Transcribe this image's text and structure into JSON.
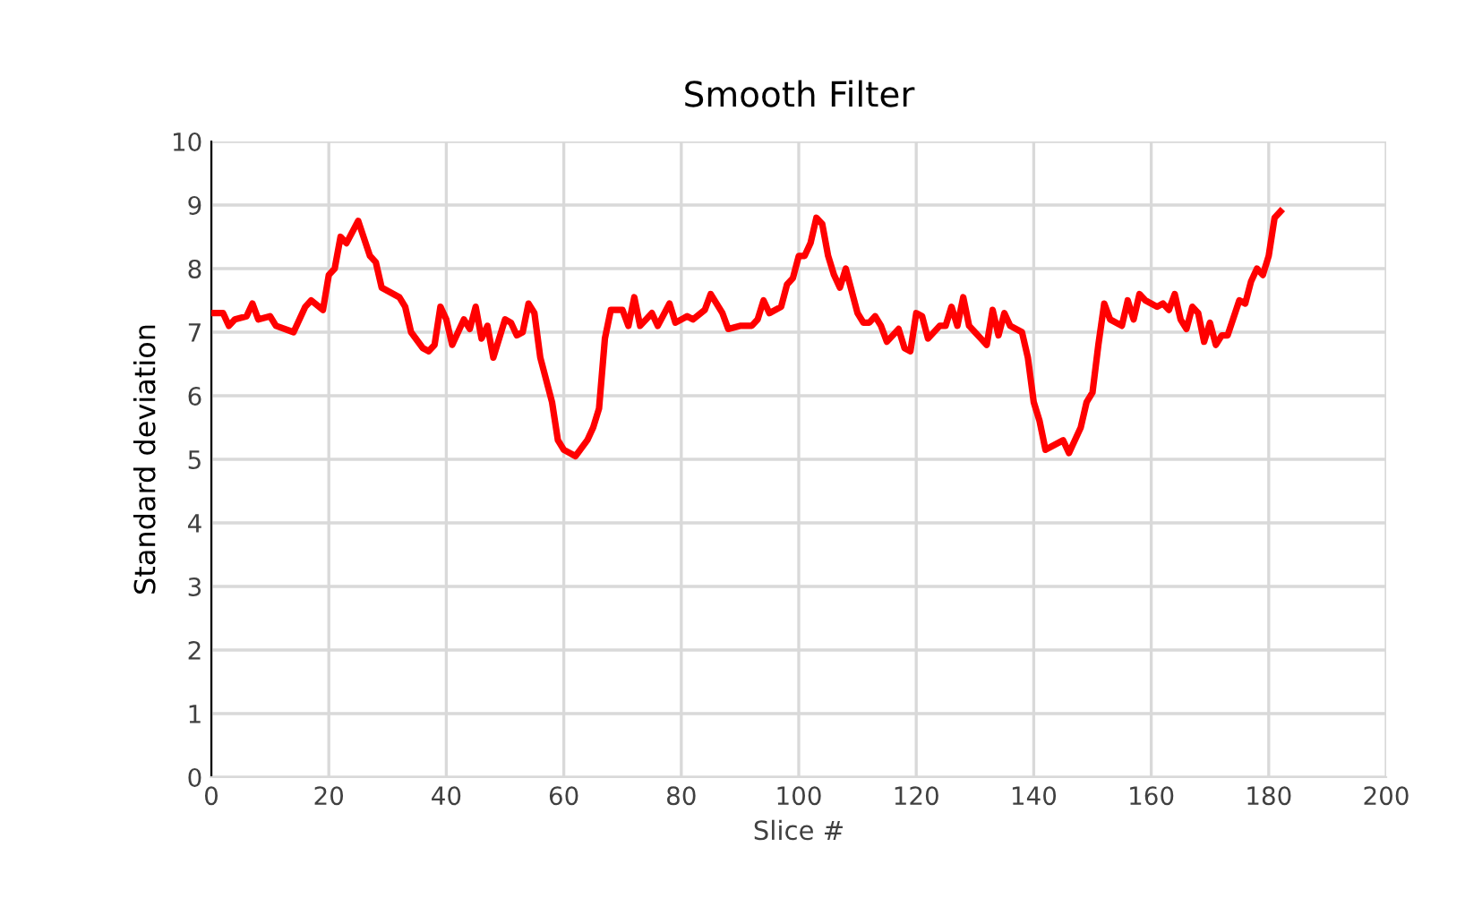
{
  "chart_data": {
    "type": "line",
    "title": "Smooth Filter",
    "xlabel": "Slice #",
    "ylabel": "Standard deviation",
    "xlim": [
      0,
      200
    ],
    "xticks": [
      0,
      20,
      40,
      60,
      80,
      100,
      120,
      140,
      160,
      180,
      200
    ],
    "ylim": [
      0,
      10
    ],
    "yticks": [
      0,
      1,
      2,
      3,
      4,
      5,
      6,
      7,
      8,
      9,
      10
    ],
    "grid": true,
    "marker": "none",
    "line_style": "solid",
    "series": [
      {
        "color": "#ff0000",
        "x": [
          0,
          2,
          3,
          4,
          6,
          7,
          8,
          10,
          11,
          14,
          16,
          17,
          19,
          20,
          21,
          22,
          23,
          25,
          27,
          28,
          29,
          32,
          33,
          34,
          36,
          37,
          38,
          39,
          40,
          41,
          43,
          44,
          45,
          46,
          47,
          48,
          50,
          51,
          52,
          53,
          54,
          55,
          56,
          58,
          59,
          60,
          62,
          64,
          65,
          66,
          67,
          68,
          70,
          71,
          72,
          73,
          75,
          76,
          78,
          79,
          81,
          82,
          84,
          85,
          87,
          88,
          90,
          92,
          93,
          94,
          95,
          97,
          98,
          99,
          100,
          101,
          102,
          103,
          104,
          105,
          106,
          107,
          108,
          110,
          111,
          112,
          113,
          114,
          115,
          117,
          118,
          119,
          120,
          121,
          122,
          124,
          125,
          126,
          127,
          128,
          129,
          130,
          131,
          132,
          133,
          134,
          135,
          136,
          138,
          139,
          140,
          141,
          142,
          143,
          145,
          146,
          148,
          149,
          150,
          151,
          152,
          153,
          155,
          156,
          157,
          158,
          159,
          161,
          162,
          163,
          164,
          165,
          166,
          167,
          168,
          169,
          170,
          171,
          172,
          173,
          175,
          176,
          177,
          178,
          179,
          180,
          181,
          182
        ],
        "values": [
          7.3,
          7.3,
          7.1,
          7.2,
          7.25,
          7.45,
          7.2,
          7.25,
          7.1,
          7.0,
          7.4,
          7.5,
          7.35,
          7.9,
          8.0,
          8.5,
          8.4,
          8.75,
          8.2,
          8.1,
          7.7,
          7.55,
          7.4,
          7.0,
          6.75,
          6.7,
          6.8,
          7.4,
          7.2,
          6.8,
          7.2,
          7.05,
          7.4,
          6.9,
          7.1,
          6.6,
          7.2,
          7.15,
          6.95,
          7.0,
          7.45,
          7.3,
          6.6,
          5.9,
          5.3,
          5.15,
          5.05,
          5.3,
          5.5,
          5.8,
          6.9,
          7.35,
          7.35,
          7.1,
          7.55,
          7.1,
          7.3,
          7.1,
          7.45,
          7.15,
          7.25,
          7.2,
          7.35,
          7.6,
          7.3,
          7.05,
          7.1,
          7.1,
          7.2,
          7.5,
          7.3,
          7.4,
          7.75,
          7.85,
          8.2,
          8.2,
          8.4,
          8.8,
          8.7,
          8.2,
          7.9,
          7.7,
          8.0,
          7.3,
          7.15,
          7.15,
          7.25,
          7.1,
          6.85,
          7.05,
          6.75,
          6.7,
          7.3,
          7.25,
          6.9,
          7.1,
          7.1,
          7.4,
          7.1,
          7.55,
          7.1,
          7.0,
          6.9,
          6.8,
          7.35,
          6.95,
          7.3,
          7.1,
          7.0,
          6.6,
          5.9,
          5.6,
          5.15,
          5.2,
          5.3,
          5.1,
          5.5,
          5.9,
          6.05,
          6.8,
          7.45,
          7.2,
          7.1,
          7.5,
          7.2,
          7.6,
          7.5,
          7.4,
          7.45,
          7.35,
          7.6,
          7.2,
          7.05,
          7.4,
          7.3,
          6.85,
          7.15,
          6.8,
          6.95,
          6.95,
          7.5,
          7.45,
          7.8,
          8.0,
          7.9,
          8.2,
          8.8,
          8.9
        ]
      }
    ]
  }
}
